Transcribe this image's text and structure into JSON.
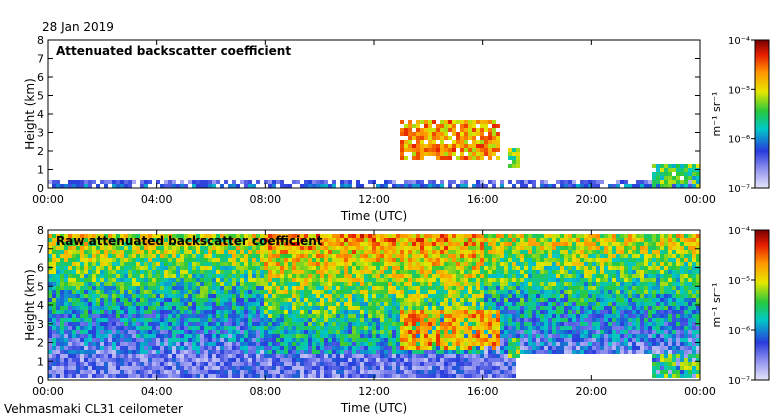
{
  "figure": {
    "date": "28 Jan 2019",
    "site": "Vehmasmaki CL31 ceilometer"
  },
  "chart_data": [
    {
      "type": "heatmap",
      "title": "Attenuated backscatter coefficient",
      "xlabel": "Time (UTC)",
      "ylabel": "Height (km)",
      "xlim": [
        0,
        24
      ],
      "ylim": [
        0,
        8
      ],
      "x_ticks": [
        0,
        4,
        8,
        12,
        16,
        20,
        24
      ],
      "x_tick_labels": [
        "00:00",
        "04:00",
        "08:00",
        "12:00",
        "16:00",
        "20:00",
        "00:00"
      ],
      "y_ticks": [
        0,
        1,
        2,
        3,
        4,
        5,
        6,
        7,
        8
      ],
      "y_tick_labels": [
        "0",
        "1",
        "2",
        "3",
        "4",
        "5",
        "6",
        "7",
        "8"
      ],
      "colorbar": {
        "label": "m⁻¹ sr⁻¹",
        "range": [
          1e-07,
          0.0001
        ],
        "scale": "log",
        "ticks": [
          "10⁻⁴",
          "10⁻⁵",
          "10⁻⁶",
          "10⁻⁷"
        ]
      },
      "features": [
        {
          "name": "surface layer",
          "t_start": 0,
          "t_end": 24,
          "h_bottom": 0,
          "h_top": 0.5,
          "level": 0.15
        },
        {
          "name": "cloud band",
          "t_start": 12.9,
          "t_end": 16.6,
          "h_bottom": 1.5,
          "h_top": 3.6,
          "level": 0.75
        },
        {
          "name": "cloud patch",
          "t_start": 16.9,
          "t_end": 17.4,
          "h_bottom": 1.1,
          "h_top": 2.1,
          "level": 0.55
        },
        {
          "name": "late low cloud",
          "t_start": 22.2,
          "t_end": 24,
          "h_bottom": 0.1,
          "h_top": 1.2,
          "level": 0.5
        }
      ]
    },
    {
      "type": "heatmap",
      "title": "Raw attenuated backscatter coefficient",
      "xlabel": "Time (UTC)",
      "ylabel": "Height (km)",
      "xlim": [
        0,
        24
      ],
      "ylim": [
        0,
        8
      ],
      "x_ticks": [
        0,
        4,
        8,
        12,
        16,
        20,
        24
      ],
      "x_tick_labels": [
        "00:00",
        "04:00",
        "08:00",
        "12:00",
        "16:00",
        "20:00",
        "00:00"
      ],
      "y_ticks": [
        0,
        1,
        2,
        3,
        4,
        5,
        6,
        7,
        8
      ],
      "y_tick_labels": [
        "0",
        "1",
        "2",
        "3",
        "4",
        "5",
        "6",
        "7",
        "8"
      ],
      "colorbar": {
        "label": "m⁻¹ sr⁻¹",
        "range": [
          1e-07,
          0.0001
        ],
        "scale": "log",
        "ticks": [
          "10⁻⁴",
          "10⁻⁵",
          "10⁻⁶",
          "10⁻⁷"
        ]
      },
      "features": [
        {
          "name": "noise field",
          "t_start": 0,
          "t_end": 24,
          "h_bottom": 0,
          "h_top": 7.7,
          "level": 0.45
        },
        {
          "name": "cloud band",
          "t_start": 12.9,
          "t_end": 16.6,
          "h_bottom": 1.5,
          "h_top": 3.6,
          "level": 0.75
        },
        {
          "name": "cloud patch",
          "t_start": 16.9,
          "t_end": 17.4,
          "h_bottom": 1.1,
          "h_top": 2.1,
          "level": 0.55
        },
        {
          "name": "late low cloud",
          "t_start": 22.2,
          "t_end": 24,
          "h_bottom": 0.1,
          "h_top": 1.2,
          "level": 0.5
        }
      ]
    }
  ]
}
